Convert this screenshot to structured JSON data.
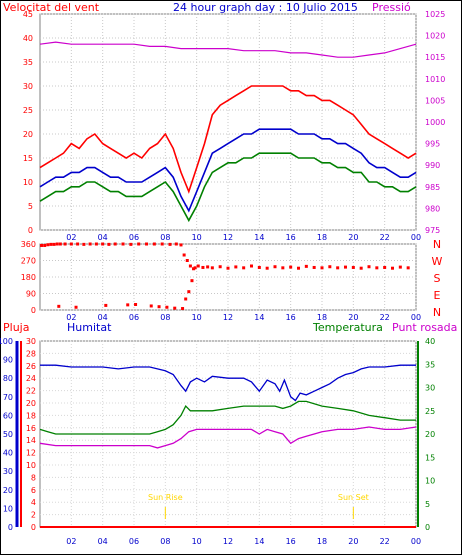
{
  "chart_data": [
    {
      "type": "line",
      "title": "24 hour graph day : 10 Julio 2015",
      "left_label": "Velocitat del vent",
      "right_label": "Pressió",
      "x_ticks": [
        "02",
        "04",
        "06",
        "08",
        "10",
        "12",
        "14",
        "16",
        "18",
        "20",
        "22",
        "00"
      ],
      "y_left_ticks": [
        0,
        5,
        10,
        15,
        20,
        25,
        30,
        35,
        40,
        45
      ],
      "y_left_range": [
        0,
        45
      ],
      "y_right_ticks": [
        975,
        980,
        985,
        990,
        995,
        1000,
        1005,
        1010,
        1015,
        1020,
        1025
      ],
      "y_right_range": [
        975,
        1025
      ],
      "grid": true,
      "series": [
        {
          "color": "#ff0000",
          "role": "gust",
          "x": [
            0,
            0.5,
            1,
            1.5,
            2,
            2.5,
            3,
            3.5,
            4,
            4.5,
            5,
            5.5,
            6,
            6.5,
            7,
            7.5,
            8,
            8.5,
            9,
            9.5,
            10,
            10.5,
            11,
            11.5,
            12,
            12.5,
            13,
            13.5,
            14,
            14.5,
            15,
            15.5,
            16,
            16.5,
            17,
            17.5,
            18,
            18.5,
            19,
            19.5,
            20,
            20.5,
            21,
            21.5,
            22,
            22.5,
            23,
            23.5,
            24
          ],
          "values": [
            13,
            14,
            15,
            16,
            18,
            17,
            19,
            20,
            18,
            17,
            16,
            15,
            16,
            15,
            17,
            18,
            20,
            17,
            12,
            8,
            13,
            18,
            24,
            26,
            27,
            28,
            29,
            30,
            30,
            30,
            30,
            30,
            29,
            29,
            28,
            28,
            27,
            27,
            26,
            25,
            24,
            22,
            20,
            19,
            18,
            17,
            16,
            15,
            16
          ]
        },
        {
          "color": "#0000cc",
          "role": "average",
          "x": [
            0,
            0.5,
            1,
            1.5,
            2,
            2.5,
            3,
            3.5,
            4,
            4.5,
            5,
            5.5,
            6,
            6.5,
            7,
            7.5,
            8,
            8.5,
            9,
            9.5,
            10,
            10.5,
            11,
            11.5,
            12,
            12.5,
            13,
            13.5,
            14,
            14.5,
            15,
            15.5,
            16,
            16.5,
            17,
            17.5,
            18,
            18.5,
            19,
            19.5,
            20,
            20.5,
            21,
            21.5,
            22,
            22.5,
            23,
            23.5,
            24
          ],
          "values": [
            9,
            10,
            11,
            11,
            12,
            12,
            13,
            13,
            12,
            11,
            11,
            10,
            10,
            10,
            11,
            12,
            13,
            11,
            7,
            4,
            8,
            12,
            16,
            17,
            18,
            19,
            20,
            20,
            21,
            21,
            21,
            21,
            21,
            20,
            20,
            20,
            19,
            19,
            18,
            18,
            17,
            16,
            14,
            13,
            13,
            12,
            11,
            11,
            12
          ]
        },
        {
          "color": "#008000",
          "role": "minimum",
          "x": [
            0,
            0.5,
            1,
            1.5,
            2,
            2.5,
            3,
            3.5,
            4,
            4.5,
            5,
            5.5,
            6,
            6.5,
            7,
            7.5,
            8,
            8.5,
            9,
            9.5,
            10,
            10.5,
            11,
            11.5,
            12,
            12.5,
            13,
            13.5,
            14,
            14.5,
            15,
            15.5,
            16,
            16.5,
            17,
            17.5,
            18,
            18.5,
            19,
            19.5,
            20,
            20.5,
            21,
            21.5,
            22,
            22.5,
            23,
            23.5,
            24
          ],
          "values": [
            6,
            7,
            8,
            8,
            9,
            9,
            10,
            10,
            9,
            8,
            8,
            7,
            7,
            7,
            8,
            9,
            10,
            8,
            5,
            2,
            5,
            9,
            12,
            13,
            14,
            14,
            15,
            15,
            16,
            16,
            16,
            16,
            16,
            15,
            15,
            15,
            14,
            14,
            13,
            13,
            12,
            12,
            10,
            10,
            9,
            9,
            8,
            8,
            9
          ]
        },
        {
          "color": "#cc00cc",
          "role": "pressure",
          "axis": "right",
          "x": [
            0,
            1,
            2,
            3,
            4,
            5,
            6,
            7,
            8,
            9,
            10,
            11,
            12,
            13,
            14,
            15,
            16,
            17,
            18,
            19,
            20,
            21,
            22,
            23,
            24
          ],
          "values": [
            1018,
            1018.5,
            1018,
            1018,
            1018,
            1018,
            1018,
            1017.5,
            1017.5,
            1017,
            1017,
            1017,
            1017,
            1016.5,
            1016.5,
            1016.5,
            1016,
            1016,
            1015.5,
            1015,
            1015,
            1015.5,
            1016,
            1017,
            1018
          ]
        }
      ]
    },
    {
      "type": "scatter",
      "direction_labels": [
        "N",
        "W",
        "S",
        "E",
        "N"
      ],
      "y_ticks": [
        0,
        90,
        180,
        270,
        360
      ],
      "y_range": [
        0,
        360
      ],
      "x_ticks": [
        "02",
        "04",
        "06",
        "08",
        "10",
        "12",
        "14",
        "16",
        "18",
        "20",
        "22",
        "00"
      ],
      "grid": true,
      "series": [
        {
          "color": "#ff0000",
          "x": [
            0.1,
            0.3,
            0.5,
            0.7,
            0.9,
            1.1,
            1.3,
            1.6,
            2.0,
            2.4,
            2.8,
            3.2,
            3.6,
            4.0,
            4.4,
            4.8,
            5.3,
            5.8,
            6.3,
            6.8,
            7.3,
            7.8,
            8.3,
            8.7,
            9.0,
            9.2,
            9.4,
            9.6,
            9.8,
            10.1,
            10.4,
            10.7,
            11.0,
            11.5,
            12.0,
            12.5,
            13.0,
            13.5,
            14.0,
            14.5,
            15.0,
            15.5,
            16.0,
            16.5,
            17.0,
            17.5,
            18.0,
            18.5,
            19.0,
            19.5,
            20.0,
            20.5,
            21.0,
            21.5,
            22.0,
            22.5,
            23.0,
            23.5,
            1.2,
            2.3,
            4.2,
            5.6,
            6.1,
            7.1,
            7.6,
            8.1,
            8.6,
            9.1,
            9.3,
            9.5,
            9.7,
            9.9
          ],
          "values": [
            352,
            352,
            356,
            358,
            358,
            360,
            360,
            360,
            360,
            360,
            358,
            360,
            360,
            360,
            358,
            360,
            360,
            358,
            360,
            360,
            360,
            360,
            358,
            360,
            355,
            300,
            270,
            240,
            225,
            240,
            232,
            235,
            230,
            236,
            228,
            235,
            230,
            240,
            232,
            228,
            236,
            230,
            234,
            228,
            238,
            232,
            230,
            236,
            230,
            234,
            232,
            228,
            236,
            230,
            232,
            228,
            234,
            230,
            20,
            15,
            25,
            28,
            30,
            22,
            18,
            15,
            10,
            8,
            60,
            100,
            160,
            230
          ]
        }
      ]
    },
    {
      "type": "line",
      "labels_top": {
        "rain": "Pluja",
        "humidity": "Humitat",
        "temperature": "Temperatura",
        "dewpoint": "Punt rosada"
      },
      "humidity_ticks": [
        0,
        10,
        20,
        30,
        40,
        50,
        60,
        70,
        80,
        90,
        100
      ],
      "humidity_range": [
        0,
        100
      ],
      "rain_ticks": [
        0,
        2,
        4,
        6,
        8,
        10,
        12,
        14,
        16,
        18,
        20,
        22,
        24,
        26,
        28,
        30
      ],
      "rain_range": [
        0,
        30
      ],
      "temp_ticks": [
        0,
        5,
        10,
        15,
        20,
        25,
        30,
        35,
        40
      ],
      "temp_range": [
        0,
        40
      ],
      "x_ticks": [
        "02",
        "04",
        "06",
        "08",
        "10",
        "12",
        "14",
        "16",
        "18",
        "20",
        "22",
        "00"
      ],
      "sun_rise_label": "Sun Rise",
      "sun_rise_x": 8.0,
      "sun_set_label": "Sun Set",
      "sun_set_x": 20.0,
      "grid": true,
      "series": [
        {
          "color": "#0000cc",
          "role": "humidity",
          "axis": "humidity",
          "x": [
            0,
            1,
            2,
            3,
            4,
            5,
            6,
            7,
            8,
            8.5,
            9,
            9.3,
            9.6,
            10,
            10.5,
            11,
            12,
            13,
            13.5,
            14,
            14.5,
            15,
            15.3,
            15.6,
            16,
            16.3,
            16.6,
            17,
            17.5,
            18,
            18.5,
            19,
            19.5,
            20,
            20.5,
            21,
            22,
            23,
            24
          ],
          "values": [
            87,
            87,
            86,
            86,
            86,
            85,
            86,
            86,
            84,
            82,
            76,
            73,
            78,
            80,
            78,
            81,
            80,
            80,
            78,
            73,
            79,
            77,
            73,
            79,
            70,
            68,
            72,
            71,
            73,
            75,
            77,
            80,
            82,
            83,
            85,
            86,
            86,
            87,
            87
          ]
        },
        {
          "color": "#008000",
          "role": "temperature",
          "axis": "temp",
          "x": [
            0,
            0.5,
            1,
            2,
            3,
            4,
            5,
            6,
            7,
            7.5,
            8,
            8.5,
            9,
            9.3,
            9.6,
            10,
            11,
            12,
            13,
            14,
            15,
            15.5,
            16,
            16.5,
            17,
            18,
            19,
            20,
            21,
            22,
            23,
            24
          ],
          "values": [
            21,
            20.5,
            20,
            20,
            20,
            20,
            20,
            20,
            20,
            20.5,
            21,
            22,
            24,
            26,
            25,
            25,
            25,
            25.5,
            26,
            26,
            26,
            25.5,
            26,
            27,
            27,
            26,
            25.5,
            25,
            24,
            23.5,
            23,
            23
          ]
        },
        {
          "color": "#cc00cc",
          "role": "dewpoint",
          "axis": "temp",
          "x": [
            0,
            1,
            2,
            3,
            4,
            5,
            6,
            7,
            7.5,
            8,
            8.5,
            9,
            9.5,
            10,
            11,
            12,
            13,
            13.5,
            14,
            14.5,
            15,
            15.5,
            16,
            16.5,
            17,
            17.5,
            18,
            19,
            20,
            21,
            22,
            23,
            24
          ],
          "values": [
            18,
            17.5,
            17.5,
            17.5,
            17.5,
            17.5,
            17.5,
            17.5,
            17,
            17.5,
            18,
            19,
            20.5,
            21,
            21,
            21,
            21,
            21,
            20,
            21,
            20.5,
            20,
            18,
            19,
            19.5,
            20,
            20.5,
            21,
            21,
            21.5,
            21,
            21,
            21.5
          ]
        },
        {
          "color": "#ff0000",
          "role": "rain",
          "axis": "rain",
          "x": [
            0,
            24
          ],
          "values": [
            0,
            0
          ]
        }
      ]
    }
  ]
}
